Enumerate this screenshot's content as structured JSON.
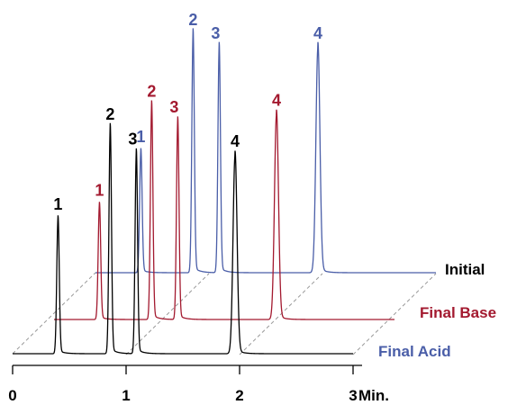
{
  "chart_data": {
    "type": "line",
    "title": "",
    "xlabel": "",
    "ylabel": "",
    "x_unit": "Min.",
    "xlim": [
      0,
      3
    ],
    "x_ticks": [
      "0",
      "1",
      "2",
      "3"
    ],
    "grid": false,
    "legend": "right",
    "series": [
      {
        "name": "Initial",
        "color": "#000000",
        "peaks": [
          {
            "label": "1",
            "time": 0.4,
            "height": 0.6
          },
          {
            "label": "2",
            "time": 0.86,
            "height": 1.0
          },
          {
            "label": "3",
            "time": 1.09,
            "height": 0.89
          },
          {
            "label": "4",
            "time": 1.96,
            "height": 0.88
          }
        ]
      },
      {
        "name": "Final Base",
        "color": "#a3192f",
        "peaks": [
          {
            "label": "1",
            "time": 0.4,
            "height": 0.51
          },
          {
            "label": "2",
            "time": 0.86,
            "height": 0.95
          },
          {
            "label": "3",
            "time": 1.09,
            "height": 0.88
          },
          {
            "label": "4",
            "time": 1.96,
            "height": 0.91
          }
        ]
      },
      {
        "name": "Final Acid",
        "color": "#4a5ea8",
        "peaks": [
          {
            "label": "1",
            "time": 0.4,
            "height": 0.54
          },
          {
            "label": "2",
            "time": 0.86,
            "height": 1.06
          },
          {
            "label": "3",
            "time": 1.09,
            "height": 1.0
          },
          {
            "label": "4",
            "time": 1.96,
            "height": 1.0
          }
        ]
      }
    ]
  }
}
